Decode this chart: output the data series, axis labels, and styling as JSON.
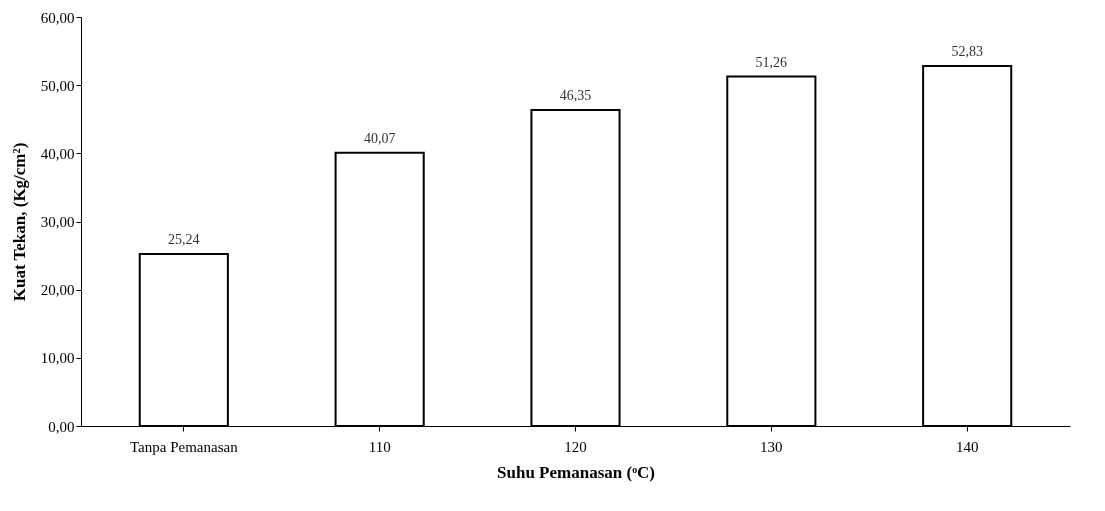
{
  "chart_data": {
    "type": "bar",
    "xlabel": "Suhu Pemanasan (ᵒC)",
    "ylabel": "Kuat Tekan, (Kg/cm²)",
    "categories": [
      "Tanpa Pemanasan",
      "110",
      "120",
      "130",
      "140"
    ],
    "values": [
      25.24,
      40.07,
      46.35,
      51.26,
      52.83
    ],
    "value_labels": [
      "25,24",
      "40,07",
      "46,35",
      "51,26",
      "52,83"
    ],
    "color": "#ffffff",
    "ylim": [
      0,
      60
    ],
    "yticks": [
      {
        "value": 0,
        "label": "0,00"
      },
      {
        "value": 10,
        "label": "10,00"
      },
      {
        "value": 20,
        "label": "20,00"
      },
      {
        "value": 30,
        "label": "30,00"
      },
      {
        "value": 40,
        "label": "40,00"
      },
      {
        "value": 50,
        "label": "50,00"
      },
      {
        "value": 60,
        "label": "60,00"
      }
    ],
    "grid": false
  }
}
